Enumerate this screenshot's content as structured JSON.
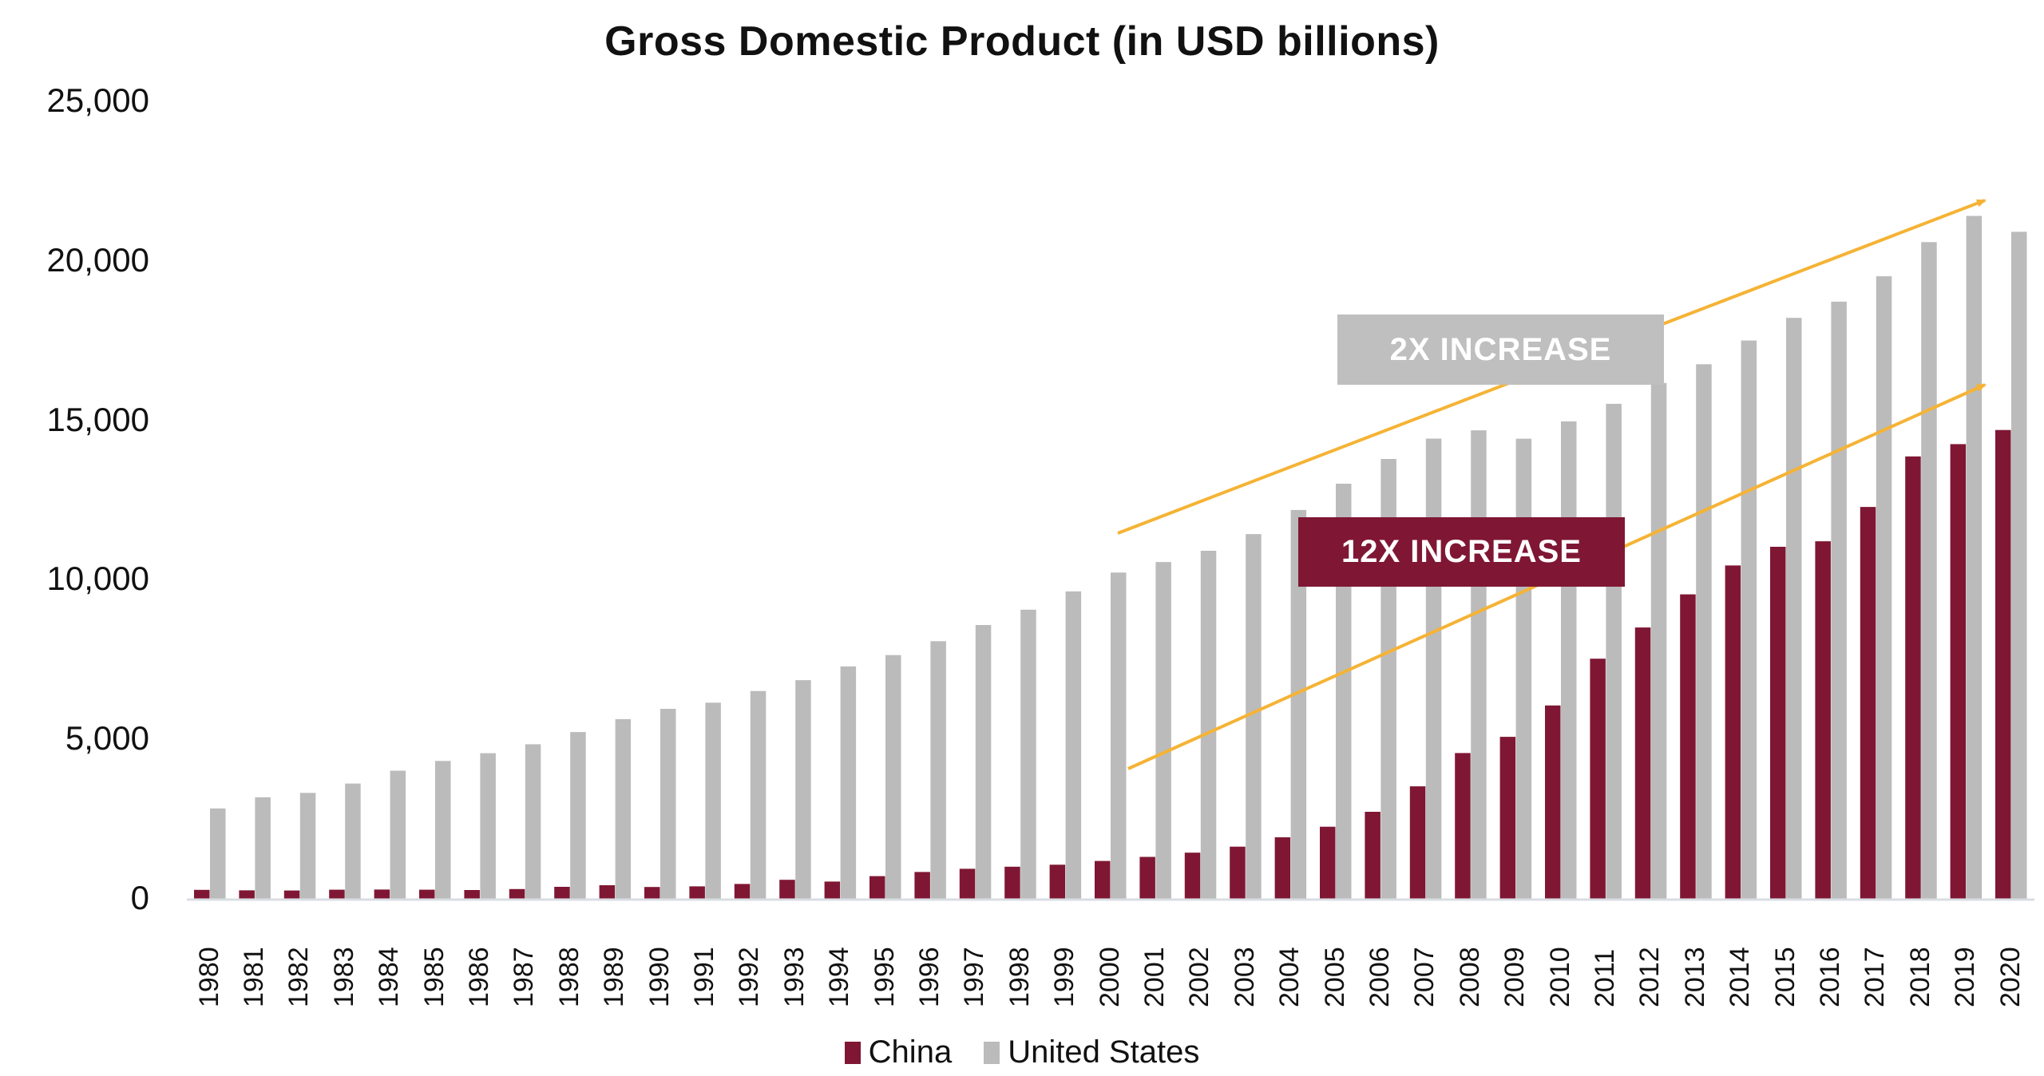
{
  "chart_data": {
    "type": "bar",
    "title": "Gross Domestic Product (in USD billions)",
    "xlabel": "",
    "ylabel": "",
    "ylim": [
      0,
      25000
    ],
    "yticks": [
      0,
      5000,
      10000,
      15000,
      20000,
      25000
    ],
    "ytick_labels": [
      "0",
      "5,000",
      "10,000",
      "15,000",
      "20,000",
      "25,000"
    ],
    "grid": false,
    "legend_position": "bottom",
    "categories": [
      "1980",
      "1981",
      "1982",
      "1983",
      "1984",
      "1985",
      "1986",
      "1987",
      "1988",
      "1989",
      "1990",
      "1991",
      "1992",
      "1993",
      "1994",
      "1995",
      "1996",
      "1997",
      "1998",
      "1999",
      "2000",
      "2001",
      "2002",
      "2003",
      "2004",
      "2005",
      "2006",
      "2007",
      "2008",
      "2009",
      "2010",
      "2011",
      "2012",
      "2013",
      "2014",
      "2015",
      "2016",
      "2017",
      "2018",
      "2019",
      "2020"
    ],
    "series": [
      {
        "name": "China",
        "color": "#7F1734",
        "values": [
          305,
          290,
          285,
          310,
          315,
          310,
          300,
          330,
          400,
          450,
          395,
          415,
          490,
          620,
          565,
          735,
          865,
          965,
          1030,
          1094,
          1211,
          1339,
          1471,
          1660,
          1955,
          2286,
          2752,
          3550,
          4594,
          5102,
          6087,
          7552,
          8532,
          9570,
          10476,
          11062,
          11233,
          12310,
          13895,
          14280,
          14723
        ]
      },
      {
        "name": "United States",
        "color": "#BBBBBB",
        "values": [
          2857,
          3207,
          3345,
          3638,
          4041,
          4347,
          4590,
          4870,
          5253,
          5658,
          5980,
          6174,
          6539,
          6879,
          7309,
          7664,
          8100,
          8609,
          9089,
          9661,
          10252,
          10582,
          10936,
          11458,
          12214,
          13037,
          13815,
          14452,
          14713,
          14449,
          14992,
          15543,
          16197,
          16785,
          17527,
          18238,
          18745,
          19543,
          20612,
          21433,
          20937
        ]
      }
    ],
    "annotations": [
      {
        "text": "2X INCREASE",
        "box_color": "#BFBFBF",
        "text_color": "#FFFFFF",
        "arrow_color": "#F5B335",
        "arrow_from_year": "2000",
        "arrow_to_year": "2019"
      },
      {
        "text": "12X INCREASE",
        "box_color": "#7F1734",
        "text_color": "#FFFFFF",
        "arrow_color": "#F5B335",
        "arrow_from_year": "2000",
        "arrow_to_year": "2019"
      }
    ]
  },
  "legend": {
    "items": [
      {
        "label": "China",
        "color": "#7F1734"
      },
      {
        "label": "United States",
        "color": "#BBBBBB"
      }
    ]
  }
}
